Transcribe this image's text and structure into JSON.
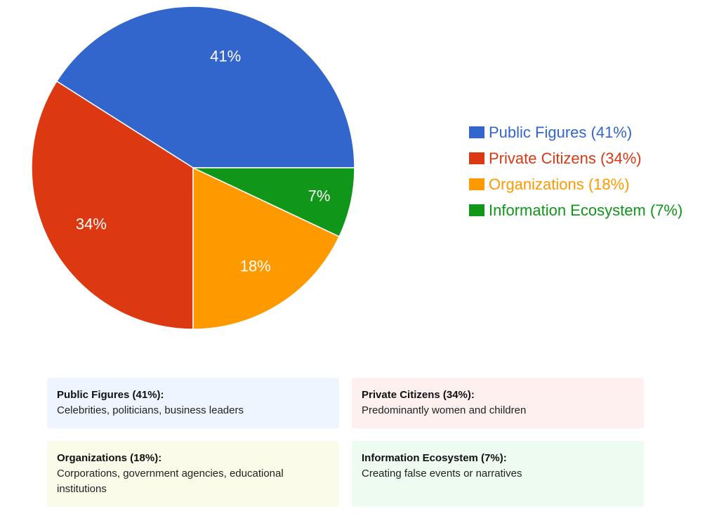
{
  "chart_data": {
    "type": "pie",
    "title": "",
    "slices": [
      {
        "label": "Public Figures",
        "value": 41,
        "value_label": "41%",
        "legend": "Public Figures (41%)",
        "color": "#3366cc"
      },
      {
        "label": "Private Citizens",
        "value": 34,
        "value_label": "34%",
        "legend": "Private Citizens (34%)",
        "color": "#dc3912"
      },
      {
        "label": "Organizations",
        "value": 18,
        "value_label": "18%",
        "legend": "Organizations (18%)",
        "color": "#ff9900"
      },
      {
        "label": "Information Ecosystem",
        "value": 7,
        "value_label": "7%",
        "legend": "Information Ecosystem (7%)",
        "color": "#109618"
      }
    ],
    "start_angle": "3 o'clock, counter-clockwise",
    "legend_position": "right"
  },
  "cards": [
    {
      "title": "Public Figures (41%):",
      "description": "Celebrities, politicians, business leaders",
      "background": "#eef5ff"
    },
    {
      "title": "Private Citizens (34%):",
      "description": "Predominantly women and children",
      "background": "#fdf0ef"
    },
    {
      "title": "Organizations (18%):",
      "description": "Corporations, government agencies, educational institutions",
      "background": "#fbfbe9"
    },
    {
      "title": "Information Ecosystem (7%):",
      "description": "Creating false events or narratives",
      "background": "#edfbf1"
    }
  ]
}
